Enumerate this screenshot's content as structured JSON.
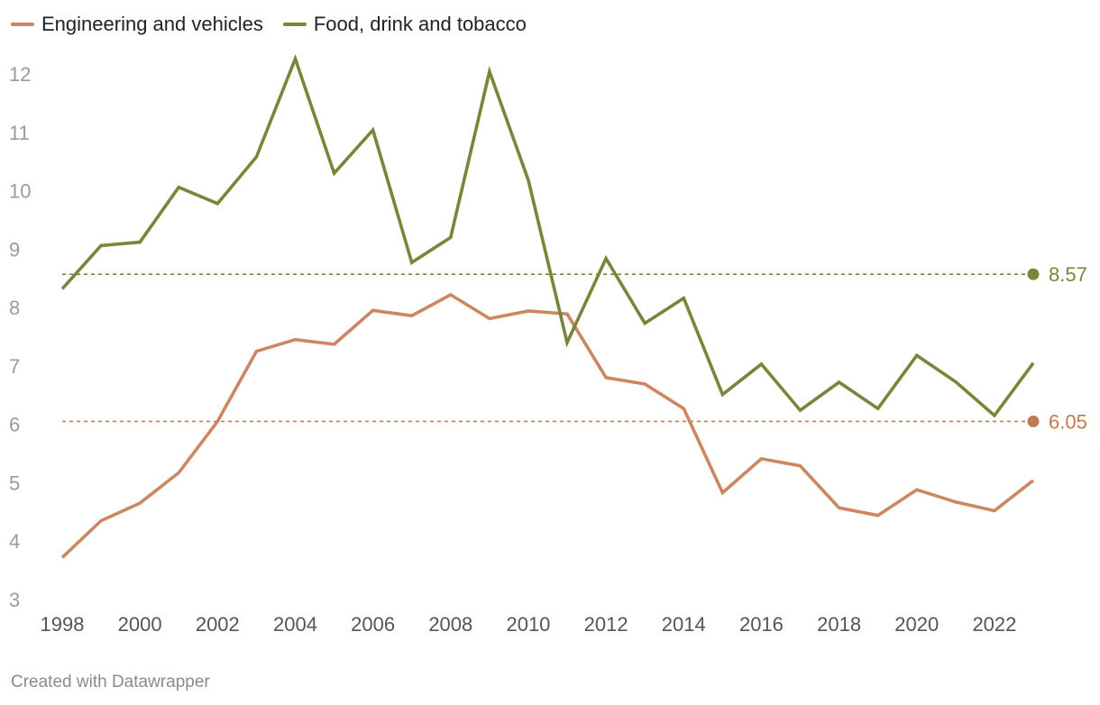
{
  "chart_data": {
    "type": "line",
    "title": "",
    "xlabel": "",
    "ylabel": "",
    "ylim": [
      3,
      12.3
    ],
    "yticks": [
      3,
      4,
      5,
      6,
      7,
      8,
      9,
      10,
      11,
      12
    ],
    "xticks": [
      1998,
      2000,
      2002,
      2004,
      2006,
      2008,
      2010,
      2012,
      2014,
      2016,
      2018,
      2020,
      2022
    ],
    "x": [
      1998,
      1999,
      2000,
      2001,
      2002,
      2003,
      2004,
      2005,
      2006,
      2007,
      2008,
      2009,
      2010,
      2011,
      2012,
      2013,
      2014,
      2015,
      2016,
      2017,
      2018,
      2019,
      2020,
      2021,
      2022,
      2023
    ],
    "series": [
      {
        "name": "Engineering and vehicles",
        "color": "#cc8760",
        "values": [
          3.72,
          4.35,
          4.65,
          5.17,
          6.05,
          7.25,
          7.45,
          7.37,
          7.95,
          7.86,
          8.22,
          7.81,
          7.94,
          7.89,
          6.8,
          6.69,
          6.27,
          4.83,
          5.41,
          5.29,
          4.57,
          4.44,
          4.88,
          4.67,
          4.52,
          5.04
        ]
      },
      {
        "name": "Food, drink and tobacco",
        "color": "#7b8539",
        "values": [
          8.32,
          9.06,
          9.12,
          10.06,
          9.78,
          10.58,
          12.26,
          10.3,
          11.04,
          8.77,
          9.2,
          12.04,
          10.18,
          7.4,
          8.84,
          7.73,
          8.16,
          6.51,
          7.03,
          6.24,
          6.72,
          6.27,
          7.18,
          6.73,
          6.15,
          7.05
        ]
      }
    ],
    "reference_lines": [
      {
        "series": "Food, drink and tobacco",
        "value": 8.57,
        "label": "8.57",
        "color": "#7b8539"
      },
      {
        "series": "Engineering and vehicles",
        "value": 6.05,
        "label": "6.05",
        "color": "#c07b52"
      }
    ],
    "legend_position": "top-left"
  },
  "legend": {
    "items": [
      {
        "label": "Engineering and vehicles",
        "color": "#cc8760"
      },
      {
        "label": "Food, drink and tobacco",
        "color": "#7b8539"
      }
    ]
  },
  "footer": {
    "credit": "Created with Datawrapper"
  }
}
